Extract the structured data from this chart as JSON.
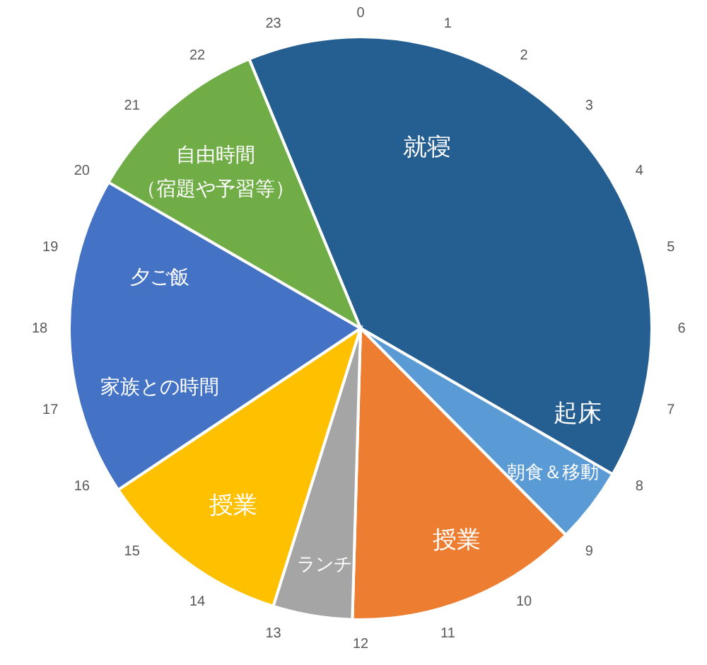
{
  "chart_data": {
    "type": "pie",
    "categories": [
      "就寝",
      "朝食＆移動",
      "授業",
      "ランチ",
      "授業",
      "夕ご飯",
      "自由時間（宿題や予習等）"
    ],
    "values": [
      39.6,
      4.2,
      12.9,
      4.4,
      10.8,
      17.7,
      10.4
    ],
    "colors": [
      "#255e91",
      "#5b9bd5",
      "#ed7d31",
      "#a5a5a5",
      "#ffc000",
      "#4472c4",
      "#70ad47"
    ],
    "annotations": [
      "0",
      "1",
      "2",
      "3",
      "4",
      "5",
      "6",
      "7",
      "8",
      "9",
      "10",
      "11",
      "12",
      "13",
      "14",
      "15",
      "16",
      "17",
      "18",
      "19",
      "20",
      "21",
      "22",
      "23",
      {
        "text": "起床",
        "x": "就寝"
      },
      {
        "text": "家族との時間",
        "x": "夕ご飯"
      }
    ]
  }
}
